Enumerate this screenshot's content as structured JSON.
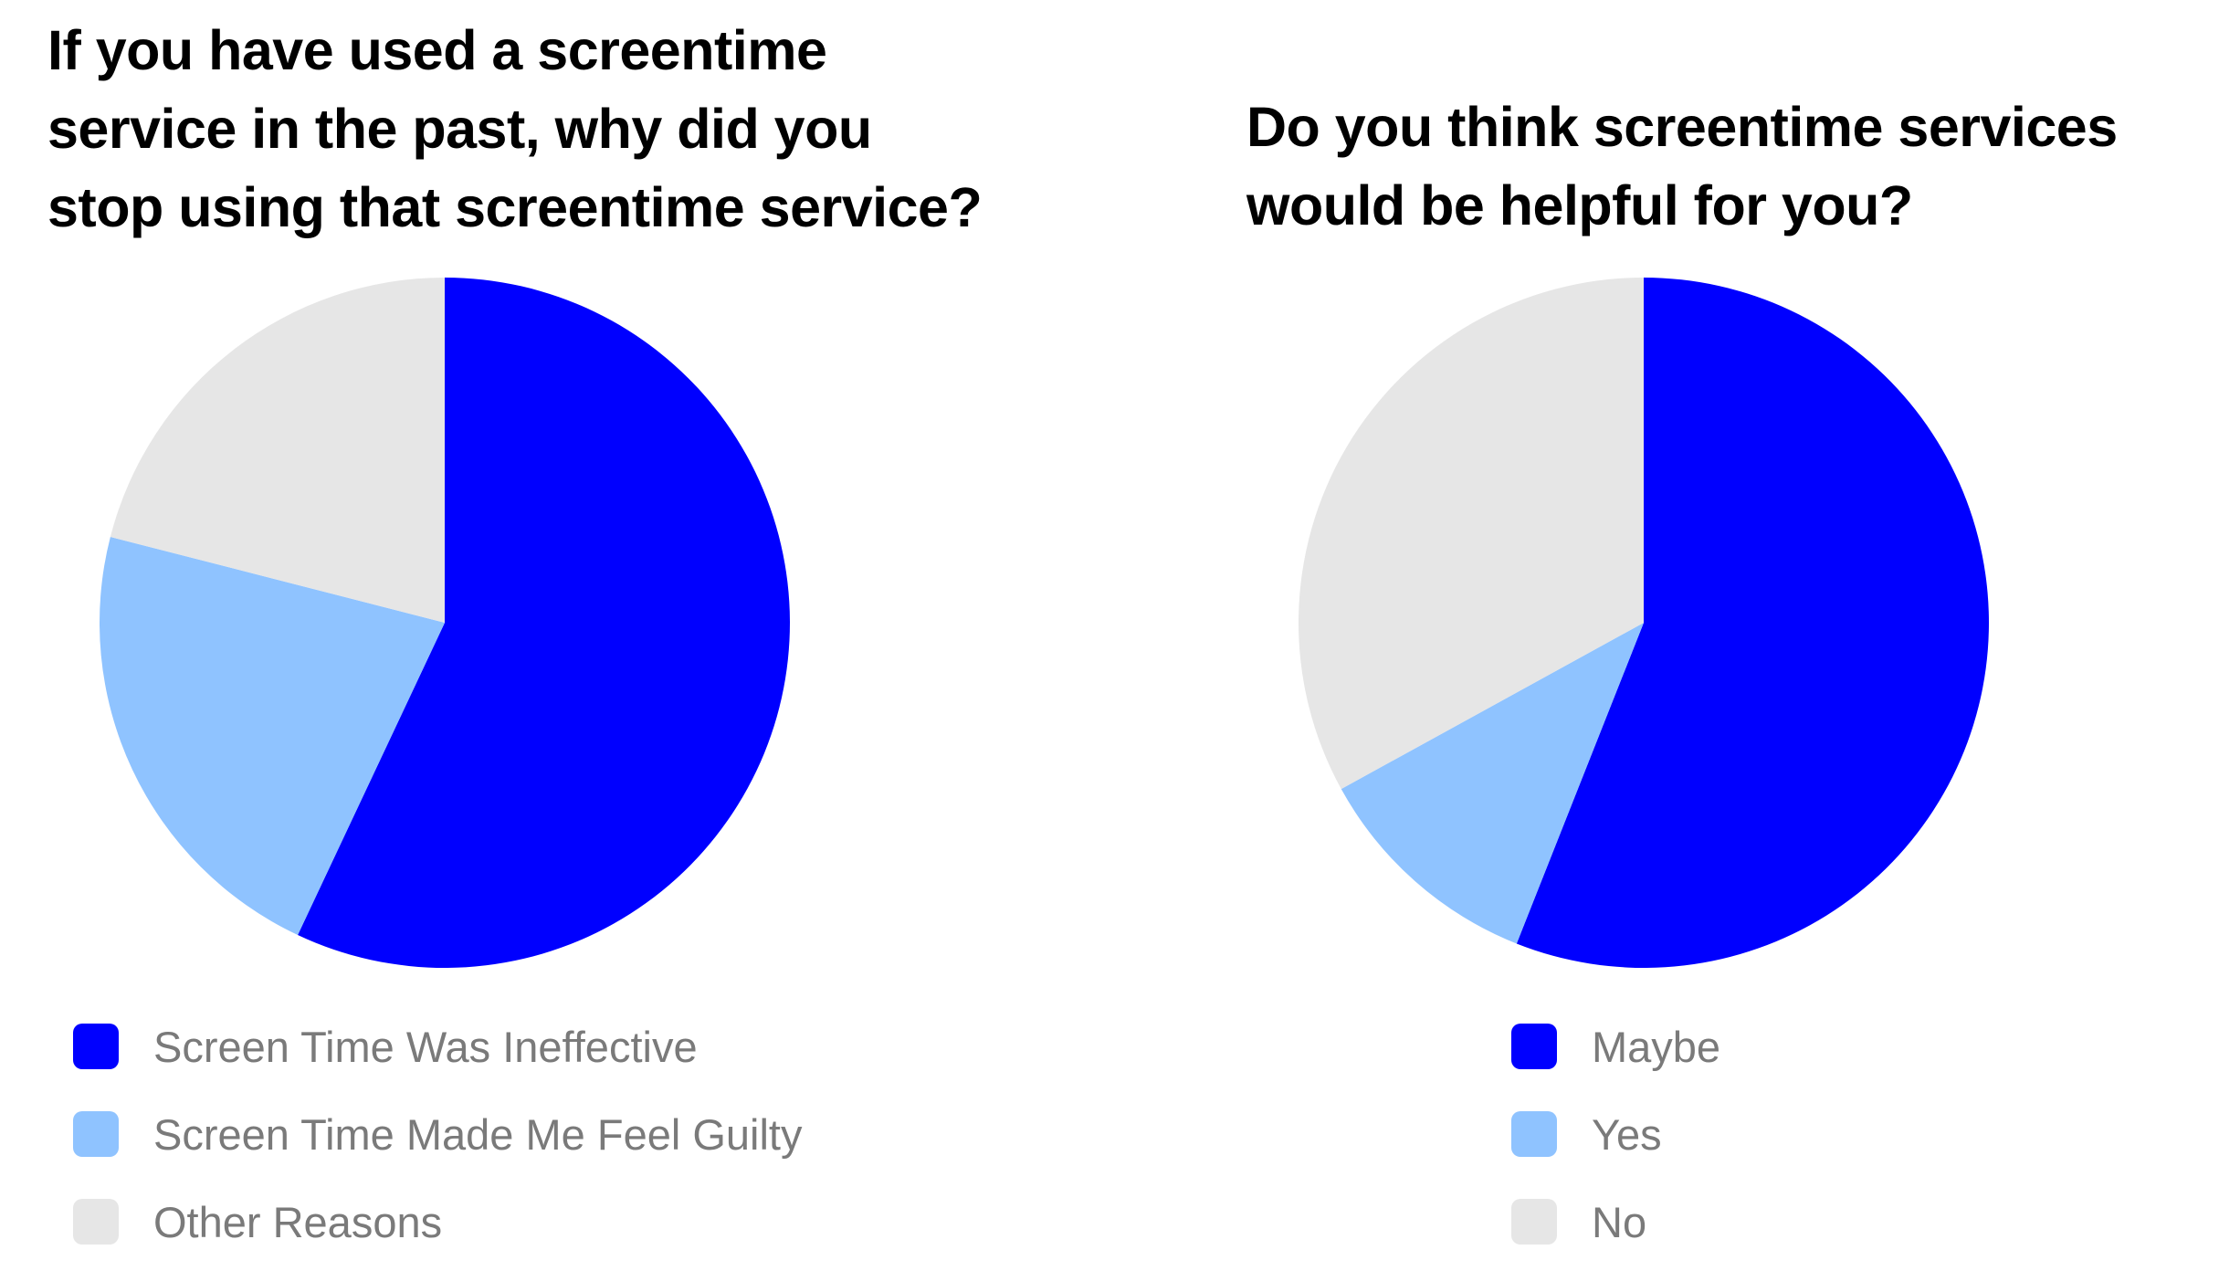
{
  "colors": {
    "dark_blue": "#0000ff",
    "light_blue": "#8fc3ff",
    "light_gray": "#e6e6e6",
    "legend_text": "#7a7a7a",
    "title_text": "#000000"
  },
  "chart_data": [
    {
      "type": "pie",
      "title": "If you have used a screentime\nservice in the past, why did you\nstop using that screentime service?",
      "legend_position": "bottom",
      "slices": [
        {
          "label": "Screen Time Was Ineffective",
          "value": 57,
          "color": "#0000ff"
        },
        {
          "label": "Screen Time Made Me Feel Guilty",
          "value": 22,
          "color": "#8fc3ff"
        },
        {
          "label": "Other Reasons",
          "value": 21,
          "color": "#e6e6e6"
        }
      ]
    },
    {
      "type": "pie",
      "title": "Do you think screentime services\nwould be helpful for you?",
      "legend_position": "bottom",
      "slices": [
        {
          "label": "Maybe",
          "value": 56,
          "color": "#0000ff"
        },
        {
          "label": "Yes",
          "value": 11,
          "color": "#8fc3ff"
        },
        {
          "label": "No",
          "value": 33,
          "color": "#e6e6e6"
        }
      ]
    }
  ]
}
